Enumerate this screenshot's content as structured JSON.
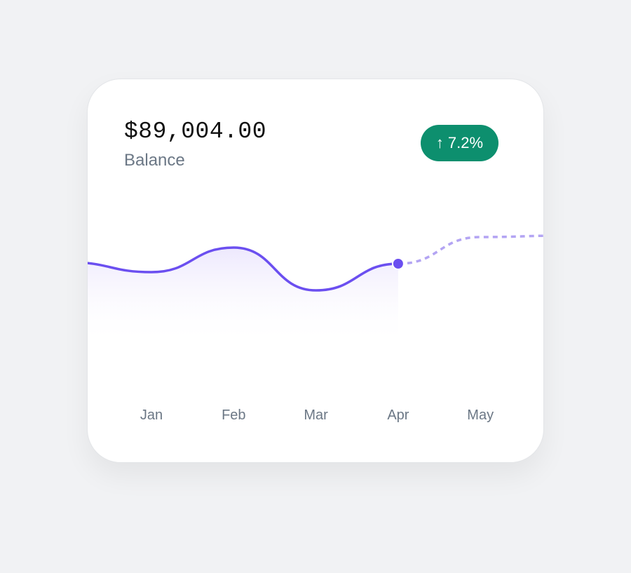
{
  "balance": {
    "amount": "$89,004.00",
    "label": "Balance"
  },
  "change_badge": {
    "icon": "arrow-up-icon",
    "arrow": "↑",
    "value": "7.2%",
    "color": "#0d8f6e"
  },
  "chart_data": {
    "type": "line",
    "categories": [
      "Jan",
      "Feb",
      "Mar",
      "Apr",
      "May"
    ],
    "values": [
      113,
      148,
      87,
      125,
      163
    ],
    "leading_value": 127,
    "trailing_value": 165,
    "actual_through": "Apr",
    "projected_from": "Apr",
    "line_color": "#6b4ff0",
    "projection_color": "#b3a4f3",
    "fill": "gradient under actual series",
    "y_axis": "hidden",
    "grid": false,
    "legend": "none"
  }
}
